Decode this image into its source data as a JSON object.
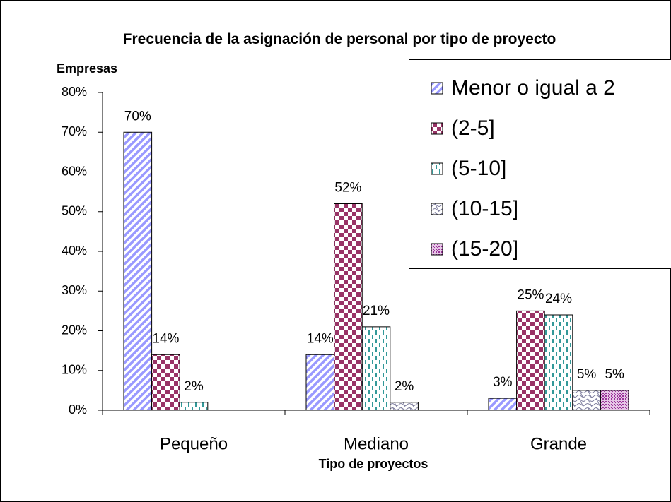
{
  "chart_data": {
    "type": "bar",
    "title": "Frecuencia de la asignación de personal por tipo de proyecto",
    "y_label": "Empresas",
    "x_label": "Tipo de proyectos",
    "categories": [
      "Pequeño",
      "Mediano",
      "Grande"
    ],
    "series": [
      {
        "name": "Menor o igual a 2",
        "color": "#9999ff",
        "values": [
          70,
          14,
          3
        ],
        "value_labels": [
          "70%",
          "14%",
          "3%"
        ]
      },
      {
        "name": "(2-5]",
        "color": "#993366",
        "values": [
          14,
          52,
          25
        ],
        "value_labels": [
          "14%",
          "52%",
          "25%"
        ]
      },
      {
        "name": "(5-10]",
        "color": "#339999",
        "values": [
          2,
          21,
          24
        ],
        "value_labels": [
          "2%",
          "21%",
          "24%"
        ]
      },
      {
        "name": "(10-15]",
        "color": "#8080a0",
        "values": [
          null,
          2,
          5
        ],
        "value_labels": [
          null,
          "2%",
          "5%"
        ]
      },
      {
        "name": "(15-20]",
        "color": "#993399",
        "values": [
          null,
          null,
          5
        ],
        "value_labels": [
          null,
          null,
          "5%"
        ]
      }
    ],
    "ylim": [
      0,
      80
    ],
    "yticks": [
      {
        "value": 0,
        "label": "0%"
      },
      {
        "value": 10,
        "label": "10%"
      },
      {
        "value": 20,
        "label": "20%"
      },
      {
        "value": 30,
        "label": "30%"
      },
      {
        "value": 40,
        "label": "40%"
      },
      {
        "value": 50,
        "label": "50%"
      },
      {
        "value": 60,
        "label": "60%"
      },
      {
        "value": 70,
        "label": "70%"
      },
      {
        "value": 80,
        "label": "80%"
      }
    ],
    "legend": "right"
  }
}
